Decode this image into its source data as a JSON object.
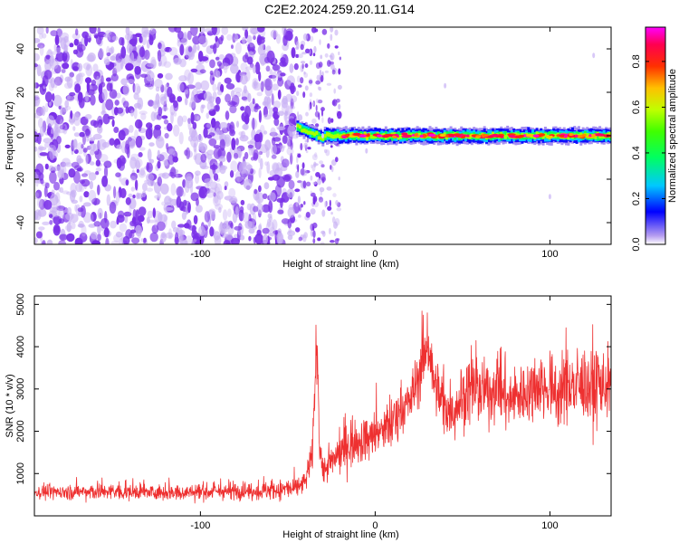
{
  "page": {
    "title": "C2E2.2024.259.20.11.G14"
  },
  "chart_data": [
    {
      "type": "heatmap",
      "xlabel": "Height of straight line (km)",
      "ylabel": "Frequency (Hz)",
      "xlim": [
        -195,
        135
      ],
      "ylim": [
        -50,
        50
      ],
      "xticks": [
        -100,
        0,
        100
      ],
      "yticks": [
        -40,
        -20,
        0,
        20,
        40
      ],
      "colorbar": {
        "label": "Normalized spectral amplitude",
        "range": [
          0,
          0.95
        ],
        "ticks": [
          0.0,
          0.2,
          0.4,
          0.6,
          0.8
        ],
        "colormap": "rainbow (white-purple-blue-cyan-green-yellow-red-magenta)"
      },
      "features": [
        {
          "name": "noise",
          "x_range": [
            -195,
            -45
          ],
          "freq_range": [
            -50,
            50
          ],
          "level": 0.1
        },
        {
          "name": "sparse noise",
          "x_range": [
            -45,
            -20
          ],
          "freq_range": [
            -50,
            50
          ],
          "level": 0.05
        },
        {
          "name": "tone",
          "x_range": [
            -45,
            135
          ],
          "freq_center": 0,
          "level_peak": 0.95
        }
      ]
    },
    {
      "type": "line",
      "xlabel": "Height of straight line (km)",
      "ylabel": "SNR (10 * v/v)",
      "xlim": [
        -195,
        135
      ],
      "ylim": [
        0,
        5200
      ],
      "xticks": [
        -100,
        0,
        100
      ],
      "yticks": [
        1000,
        2000,
        3000,
        4000,
        5000
      ],
      "color": "#ee3030",
      "series": [
        {
          "x": [
            -195,
            -180,
            -160,
            -140,
            -120,
            -100,
            -80,
            -60,
            -45,
            -40,
            -36,
            -34,
            -33,
            -32,
            -30,
            -25,
            -20,
            -15,
            -10,
            -5,
            0,
            5,
            10,
            15,
            20,
            25,
            28,
            30,
            32,
            35,
            40,
            45,
            50,
            55,
            60,
            65,
            70,
            75,
            80,
            85,
            90,
            95,
            100,
            105,
            110,
            115,
            120,
            125,
            130,
            135
          ],
          "values": [
            550,
            560,
            570,
            560,
            550,
            560,
            580,
            600,
            650,
            800,
            1400,
            3600,
            3900,
            1800,
            1000,
            1300,
            1500,
            1700,
            1750,
            1800,
            1900,
            2000,
            2200,
            2500,
            2700,
            3300,
            3800,
            4200,
            3600,
            2900,
            2600,
            2500,
            2800,
            3000,
            2900,
            2850,
            3100,
            2700,
            2800,
            2900,
            3000,
            3100,
            3000,
            2900,
            3050,
            3000,
            3100,
            2950,
            3100,
            3000
          ],
          "noise": [
            200,
            200,
            220,
            220,
            220,
            220,
            240,
            260,
            280,
            300,
            500,
            900,
            900,
            500,
            400,
            500,
            600,
            650,
            650,
            650,
            700,
            700,
            750,
            800,
            800,
            850,
            900,
            900,
            850,
            850,
            800,
            800,
            850,
            900,
            850,
            850,
            900,
            850,
            850,
            900,
            900,
            950,
            950,
            950,
            950,
            950,
            1000,
            1000,
            1000,
            1000
          ]
        }
      ]
    }
  ]
}
